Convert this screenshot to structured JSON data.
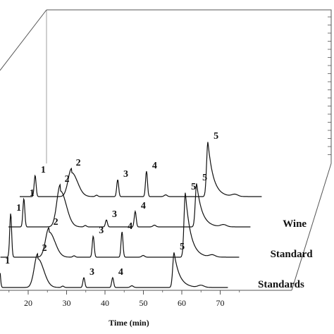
{
  "chart_data": {
    "type": "line",
    "chart_style": "3d-waterfall",
    "grid": false,
    "xlabel": "Time (min)",
    "xticks": [
      20,
      30,
      40,
      50,
      60,
      70
    ],
    "colors": {
      "line": "#111111",
      "frame": "#555555",
      "background": "#ffffff"
    },
    "traces": [
      {
        "name": "Standards",
        "label_text": "Standards",
        "peaks": [
          {
            "label": "1",
            "time": 12.5
          },
          {
            "label": "2",
            "time": 22.5
          },
          {
            "label": "3",
            "time": 34.5
          },
          {
            "label": "4",
            "time": 42.0
          },
          {
            "label": "5",
            "time": 58.0
          }
        ]
      },
      {
        "name": "Standards",
        "label_text": "Standard",
        "peaks": [
          {
            "label": "1",
            "time": 12.5
          },
          {
            "label": "2",
            "time": 22.5
          },
          {
            "label": "3",
            "time": 34.0
          },
          {
            "label": "4",
            "time": 41.5
          },
          {
            "label": "5",
            "time": 58.0
          }
        ]
      },
      {
        "name": "Wine",
        "label_text": "Wine",
        "peaks": [
          {
            "label": "1",
            "time": 13.0
          },
          {
            "label": "2",
            "time": 22.5
          },
          {
            "label": "3",
            "time": 34.5
          },
          {
            "label": "4",
            "time": 42.0
          },
          {
            "label": "5",
            "time": 58.0
          }
        ]
      },
      {
        "name": "Wine",
        "label_text": "",
        "peaks": [
          {
            "label": "1",
            "time": 13.0
          },
          {
            "label": "2",
            "time": 22.5
          },
          {
            "label": "3",
            "time": 34.5
          },
          {
            "label": "4",
            "time": 42.0
          },
          {
            "label": "5",
            "time": 58.0
          }
        ]
      }
    ]
  }
}
